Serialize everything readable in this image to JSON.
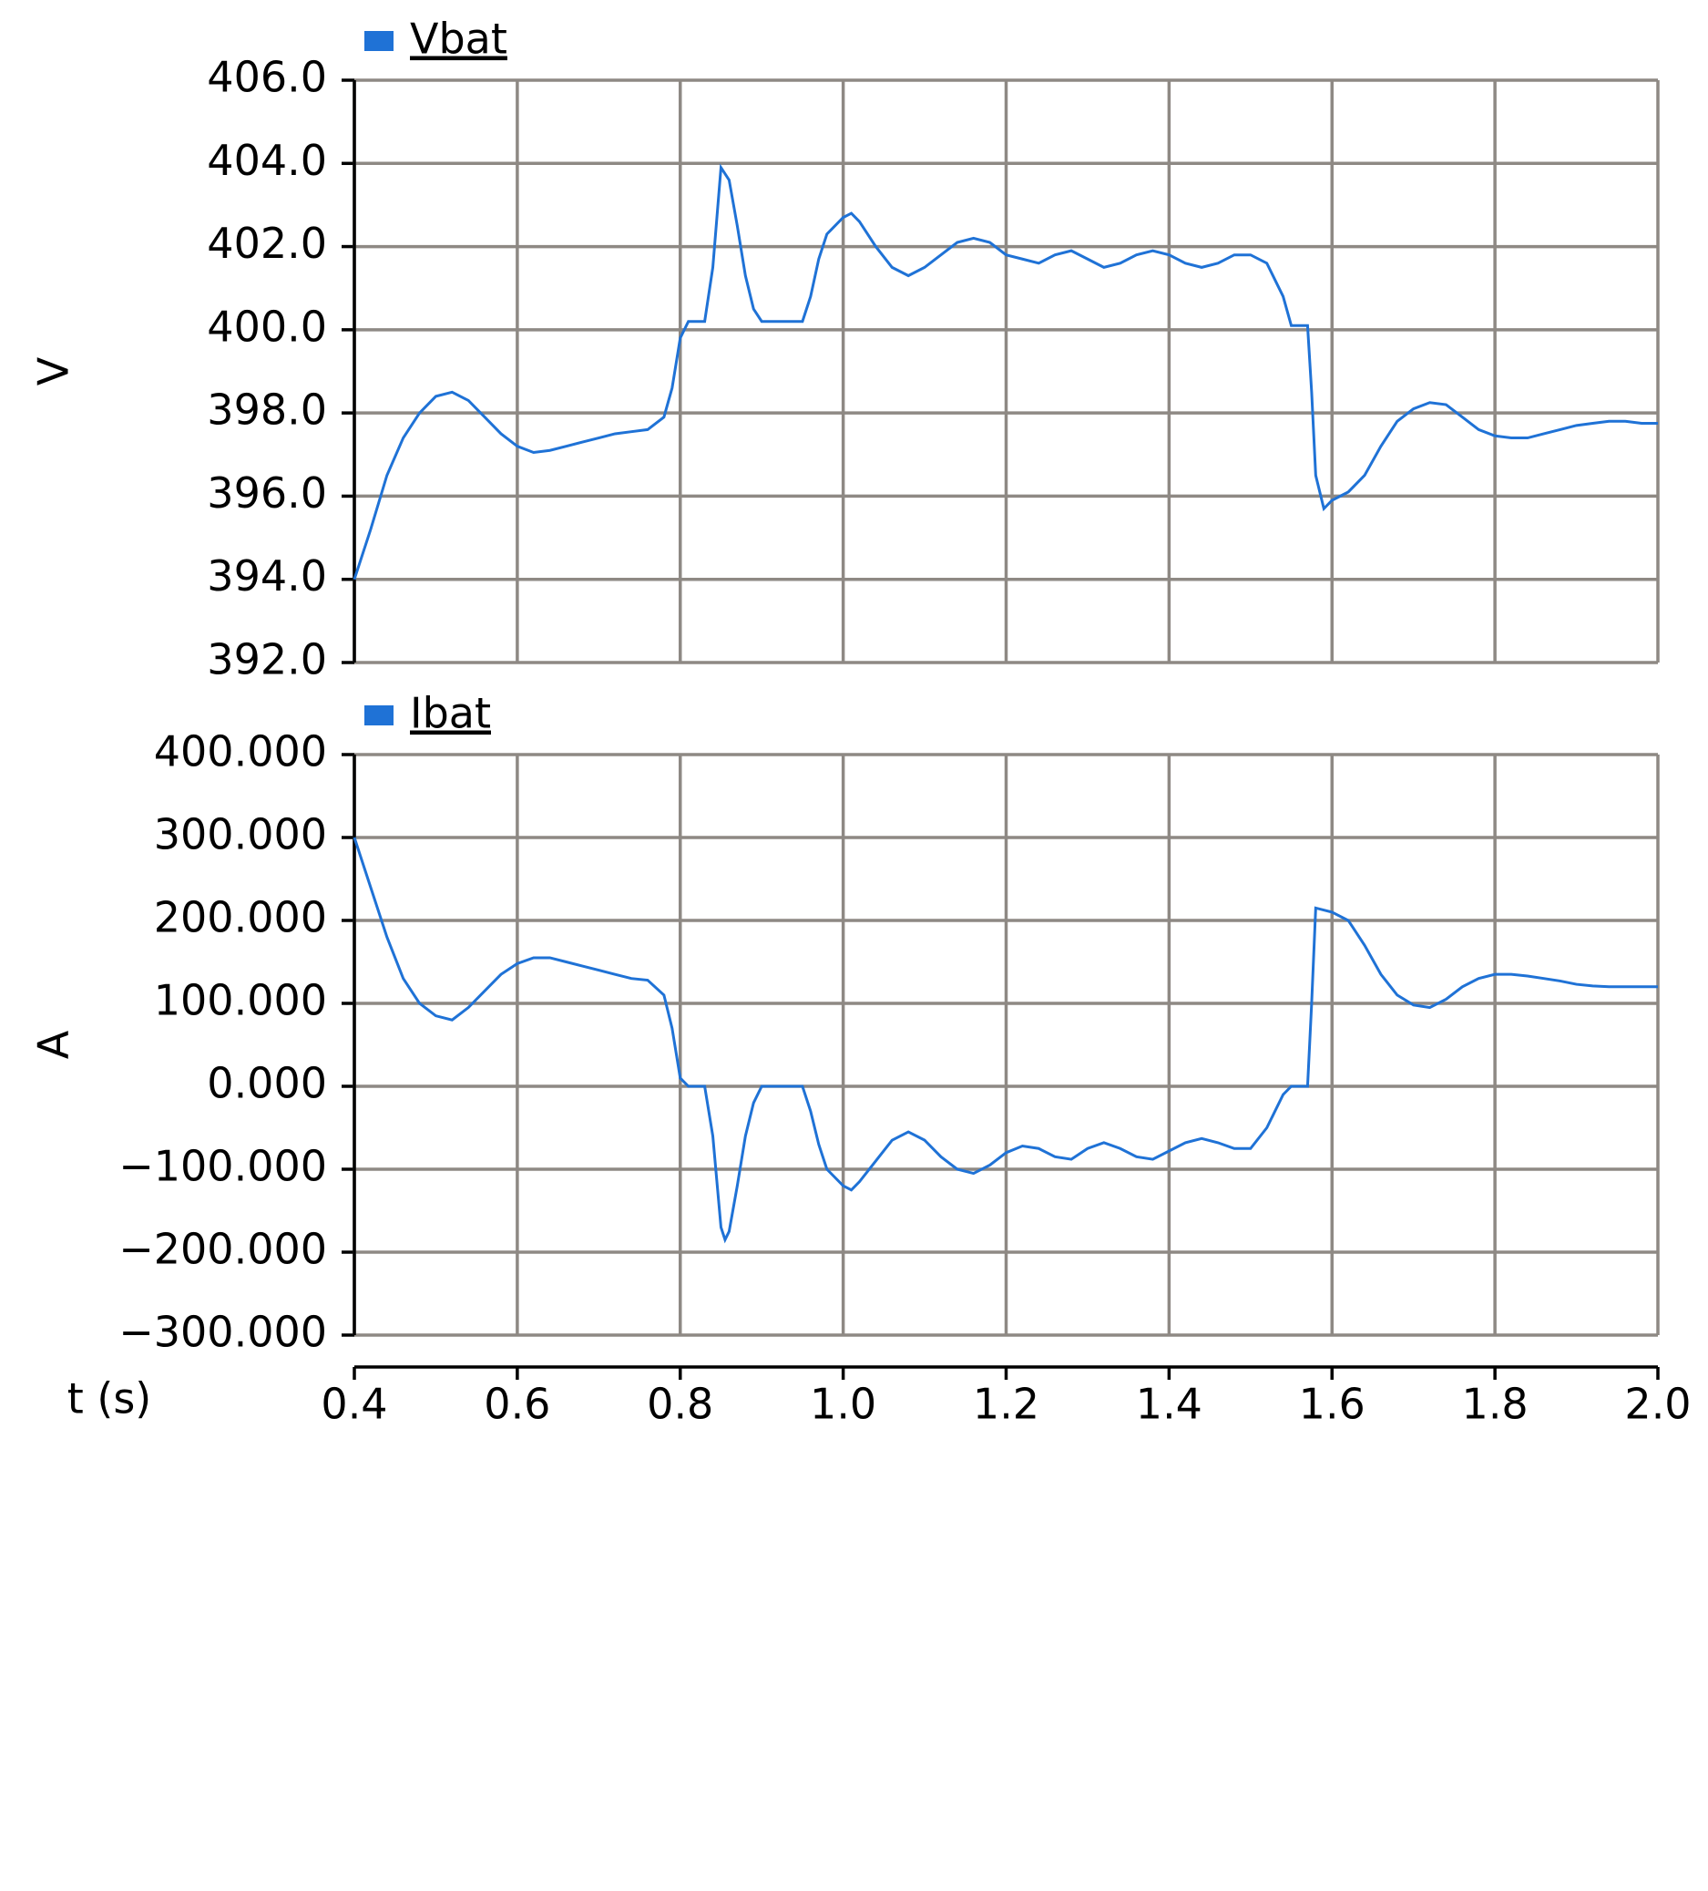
{
  "chart_data": [
    {
      "type": "line",
      "ylabel": "V",
      "grid": true,
      "xlim": [
        0.4,
        2.0
      ],
      "xticks": [
        0.4,
        0.6,
        0.8,
        {
          "value": 1.0,
          "label": "1.0"
        },
        1.2,
        1.4,
        1.6,
        1.8,
        {
          "value": 2.0,
          "label": "2.0"
        }
      ],
      "ylim": [
        392,
        406
      ],
      "yticks": [
        {
          "value": 392,
          "label": "392.0"
        },
        {
          "value": 394,
          "label": "394.0"
        },
        {
          "value": 396,
          "label": "396.0"
        },
        {
          "value": 398,
          "label": "398.0"
        },
        {
          "value": 400,
          "label": "400.0"
        },
        {
          "value": 402,
          "label": "402.0"
        },
        {
          "value": 404,
          "label": "404.0"
        },
        {
          "value": 406,
          "label": "406.0"
        }
      ],
      "x": [
        0.4,
        0.42,
        0.44,
        0.46,
        0.48,
        0.5,
        0.52,
        0.54,
        0.56,
        0.58,
        0.6,
        0.62,
        0.64,
        0.66,
        0.68,
        0.7,
        0.72,
        0.74,
        0.76,
        0.78,
        0.79,
        0.8,
        0.81,
        0.83,
        0.84,
        0.85,
        0.86,
        0.87,
        0.88,
        0.89,
        0.9,
        0.92,
        0.95,
        0.96,
        0.97,
        0.98,
        1.0,
        1.01,
        1.02,
        1.04,
        1.06,
        1.08,
        1.1,
        1.12,
        1.14,
        1.16,
        1.18,
        1.2,
        1.22,
        1.24,
        1.26,
        1.28,
        1.3,
        1.32,
        1.34,
        1.36,
        1.38,
        1.4,
        1.42,
        1.44,
        1.46,
        1.48,
        1.5,
        1.52,
        1.54,
        1.55,
        1.57,
        1.575,
        1.58,
        1.59,
        1.6,
        1.62,
        1.64,
        1.66,
        1.68,
        1.7,
        1.72,
        1.74,
        1.76,
        1.78,
        1.8,
        1.82,
        1.84,
        1.86,
        1.88,
        1.9,
        1.92,
        1.94,
        1.96,
        1.98,
        2.0
      ],
      "series": [
        {
          "name": "Vbat",
          "color": "#1f72d6",
          "values": [
            394.0,
            395.2,
            396.5,
            397.4,
            398.0,
            398.4,
            398.5,
            398.3,
            397.9,
            397.5,
            397.2,
            397.05,
            397.1,
            397.2,
            397.3,
            397.4,
            397.5,
            397.55,
            397.6,
            397.9,
            398.6,
            399.8,
            400.2,
            400.2,
            401.5,
            403.9,
            403.6,
            402.5,
            401.3,
            400.5,
            400.2,
            400.2,
            400.2,
            400.8,
            401.7,
            402.3,
            402.7,
            402.8,
            402.6,
            402.0,
            401.5,
            401.3,
            401.5,
            401.8,
            402.1,
            402.2,
            402.1,
            401.8,
            401.7,
            401.6,
            401.8,
            401.9,
            401.7,
            401.5,
            401.6,
            401.8,
            401.9,
            401.8,
            401.6,
            401.5,
            401.6,
            401.8,
            401.8,
            401.6,
            400.8,
            400.1,
            400.1,
            398.5,
            396.5,
            395.7,
            395.9,
            396.1,
            396.5,
            397.2,
            397.8,
            398.1,
            398.25,
            398.2,
            397.9,
            397.6,
            397.45,
            397.4,
            397.4,
            397.5,
            397.6,
            397.7,
            397.75,
            397.8,
            397.8,
            397.75,
            397.75
          ]
        }
      ]
    },
    {
      "type": "line",
      "ylabel": "A",
      "xlabel": "t (s)",
      "grid": true,
      "xlim": [
        0.4,
        2.0
      ],
      "xticks": [
        0.4,
        0.6,
        0.8,
        {
          "value": 1.0,
          "label": "1.0"
        },
        1.2,
        1.4,
        1.6,
        1.8,
        {
          "value": 2.0,
          "label": "2.0"
        }
      ],
      "ylim": [
        -300,
        400
      ],
      "yticks": [
        {
          "value": -300,
          "label": "−300.000"
        },
        {
          "value": -200,
          "label": "−200.000"
        },
        {
          "value": -100,
          "label": "−100.000"
        },
        {
          "value": 0,
          "label": "0.000"
        },
        {
          "value": 100,
          "label": "100.000"
        },
        {
          "value": 200,
          "label": "200.000"
        },
        {
          "value": 300,
          "label": "300.000"
        },
        {
          "value": 400,
          "label": "400.000"
        }
      ],
      "x": [
        0.4,
        0.42,
        0.44,
        0.46,
        0.48,
        0.5,
        0.52,
        0.54,
        0.56,
        0.58,
        0.6,
        0.62,
        0.64,
        0.66,
        0.68,
        0.7,
        0.72,
        0.74,
        0.76,
        0.78,
        0.79,
        0.8,
        0.81,
        0.83,
        0.84,
        0.85,
        0.855,
        0.86,
        0.87,
        0.88,
        0.89,
        0.9,
        0.92,
        0.95,
        0.96,
        0.97,
        0.98,
        1.0,
        1.01,
        1.02,
        1.04,
        1.06,
        1.08,
        1.1,
        1.12,
        1.14,
        1.16,
        1.18,
        1.2,
        1.22,
        1.24,
        1.26,
        1.28,
        1.3,
        1.32,
        1.34,
        1.36,
        1.38,
        1.4,
        1.42,
        1.44,
        1.46,
        1.48,
        1.5,
        1.52,
        1.54,
        1.55,
        1.57,
        1.575,
        1.58,
        1.6,
        1.62,
        1.64,
        1.66,
        1.68,
        1.7,
        1.72,
        1.74,
        1.76,
        1.78,
        1.8,
        1.82,
        1.84,
        1.86,
        1.88,
        1.9,
        1.92,
        1.94,
        1.96,
        1.98,
        2.0
      ],
      "series": [
        {
          "name": "Ibat",
          "color": "#1f72d6",
          "values": [
            300,
            240,
            180,
            130,
            100,
            85,
            80,
            95,
            115,
            135,
            148,
            155,
            155,
            150,
            145,
            140,
            135,
            130,
            128,
            110,
            70,
            10,
            0,
            0,
            -60,
            -170,
            -185,
            -175,
            -120,
            -60,
            -20,
            0,
            0,
            0,
            -30,
            -70,
            -100,
            -120,
            -125,
            -115,
            -90,
            -65,
            -55,
            -65,
            -85,
            -100,
            -105,
            -95,
            -80,
            -72,
            -75,
            -85,
            -88,
            -75,
            -68,
            -75,
            -85,
            -88,
            -78,
            -68,
            -63,
            -68,
            -75,
            -75,
            -50,
            -10,
            0,
            0,
            100,
            215,
            210,
            200,
            170,
            135,
            110,
            98,
            95,
            105,
            120,
            130,
            135,
            135,
            133,
            130,
            127,
            123,
            121,
            120,
            120,
            120,
            120
          ]
        }
      ]
    }
  ]
}
